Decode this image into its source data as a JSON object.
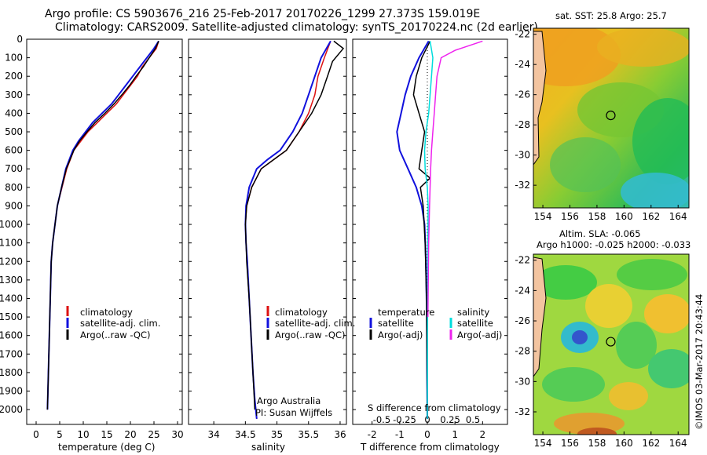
{
  "title_line1": "Argo profile: CS 5903676_216 25-Feb-2017 20170226_1299 27.373S 159.019E",
  "title_line2": "Climatology: CARS2009. Satellite-adjusted climatology: synTS_20170224.nc (2d earlier)",
  "credit": "Argo Australia",
  "pi": "PI: Susan Wijffels",
  "watermark": "©IMOS 03-Mar-2017 20:43:44",
  "colors": {
    "red": "#dd1111",
    "blue": "#1111dd",
    "black": "#000000",
    "cyan": "#00dddd",
    "magenta": "#ee22ee"
  },
  "chart_data": [
    {
      "type": "line",
      "xlabel": "temperature (deg C)",
      "ylabel": "",
      "xlim": [
        -2,
        31
      ],
      "ylim": [
        2080,
        0
      ],
      "xticks": [
        0,
        5,
        10,
        15,
        20,
        25,
        30
      ],
      "yticks": [
        0,
        100,
        200,
        300,
        400,
        500,
        600,
        700,
        800,
        900,
        1000,
        1100,
        1200,
        1300,
        1400,
        1500,
        1600,
        1700,
        1800,
        1900,
        2000
      ],
      "legend": [
        "climatology",
        "satellite-adj. clim.",
        "Argo(..raw -QC)"
      ],
      "series": [
        {
          "name": "climatology",
          "color": "red",
          "x": [
            26,
            25.5,
            24,
            22.5,
            21.5,
            20,
            18.5,
            17,
            15,
            13,
            11,
            9.5,
            8,
            6.5,
            5.5,
            4.5,
            4,
            3.5,
            3.2,
            3,
            2.8,
            2.6,
            2.4
          ],
          "y": [
            10,
            50,
            100,
            150,
            200,
            250,
            300,
            350,
            400,
            450,
            500,
            550,
            600,
            700,
            800,
            900,
            1000,
            1100,
            1200,
            1400,
            1600,
            1800,
            2000
          ]
        },
        {
          "name": "satellite-adj. clim.",
          "color": "blue",
          "x": [
            26,
            25,
            23.5,
            22,
            20.5,
            19,
            17.5,
            16,
            14,
            12,
            10.5,
            9,
            7.8,
            6.3,
            5.4,
            4.5,
            4,
            3.5,
            3.2,
            3,
            2.8,
            2.6,
            2.4
          ],
          "y": [
            10,
            50,
            100,
            150,
            200,
            250,
            300,
            350,
            400,
            450,
            500,
            550,
            600,
            700,
            800,
            900,
            1000,
            1100,
            1200,
            1400,
            1600,
            1800,
            2000
          ]
        },
        {
          "name": "Argo(..raw -QC)",
          "color": "black",
          "x": [
            26,
            25.3,
            24,
            22.7,
            21.2,
            19.8,
            18.2,
            16.5,
            14.6,
            12.5,
            10.8,
            9.2,
            8,
            6.4,
            5.4,
            4.5,
            4,
            3.5,
            3.2,
            3,
            2.8,
            2.6,
            2.4
          ],
          "y": [
            10,
            50,
            100,
            150,
            200,
            250,
            300,
            350,
            400,
            450,
            500,
            550,
            600,
            700,
            800,
            900,
            1000,
            1100,
            1200,
            1400,
            1600,
            1800,
            2000
          ]
        }
      ]
    },
    {
      "type": "line",
      "xlabel": "salinity",
      "xlim": [
        33.6,
        36.1
      ],
      "ylim": [
        2080,
        0
      ],
      "xticks": [
        34,
        34.5,
        35,
        35.5,
        36
      ],
      "legend": [
        "climatology",
        "satellite-adj. clim.",
        "Argo(..raw -QC)"
      ],
      "series": [
        {
          "name": "climatology",
          "color": "red",
          "x": [
            35.85,
            35.75,
            35.65,
            35.6,
            35.5,
            35.35,
            35.15,
            34.95,
            34.75,
            34.6,
            34.52,
            34.5,
            34.51,
            34.53,
            34.56,
            34.59,
            34.62,
            34.65,
            34.68
          ],
          "y": [
            10,
            100,
            200,
            300,
            400,
            500,
            600,
            650,
            700,
            800,
            900,
            1000,
            1100,
            1200,
            1400,
            1600,
            1800,
            1950,
            2050
          ]
        },
        {
          "name": "satellite-adj. clim.",
          "color": "blue",
          "x": [
            35.85,
            35.7,
            35.6,
            35.5,
            35.4,
            35.25,
            35.05,
            34.85,
            34.68,
            34.56,
            34.51,
            34.5,
            34.51,
            34.53,
            34.56,
            34.59,
            34.62,
            34.65,
            34.68
          ],
          "y": [
            10,
            100,
            200,
            300,
            400,
            500,
            600,
            650,
            700,
            800,
            900,
            1000,
            1100,
            1200,
            1400,
            1600,
            1800,
            1950,
            2050
          ]
        },
        {
          "name": "Argo(..raw -QC)",
          "color": "black",
          "x": [
            35.9,
            36.05,
            35.88,
            35.8,
            35.7,
            35.55,
            35.35,
            35.15,
            34.95,
            34.75,
            34.6,
            34.52,
            34.5,
            34.52,
            34.56,
            34.59,
            34.62,
            34.65
          ],
          "y": [
            10,
            50,
            120,
            200,
            300,
            400,
            500,
            600,
            650,
            700,
            800,
            900,
            1000,
            1200,
            1400,
            1600,
            1800,
            2000
          ]
        }
      ]
    },
    {
      "type": "line",
      "xlabel": "T difference from climatology",
      "x2label": "S difference from climatology",
      "xlim": [
        -2.7,
        2.9
      ],
      "ylim": [
        2080,
        0
      ],
      "xticks": [
        -2,
        -1,
        0,
        1,
        2
      ],
      "x2ticks": [
        -0.5,
        -0.25,
        0,
        0.25,
        0.5
      ],
      "legend_left_title": "temperature",
      "legend_right_title": "salinity",
      "legend": [
        "satellite",
        "Argo(-adj)",
        "satellite",
        "Argo(-adj)"
      ],
      "series": [
        {
          "name": "satellite",
          "color": "blue",
          "x": [
            0.05,
            -0.3,
            -0.6,
            -0.8,
            -0.95,
            -1.1,
            -1.0,
            -0.7,
            -0.4,
            -0.2,
            -0.1,
            -0.05,
            -0.02,
            -0.01,
            0
          ],
          "y": [
            10,
            100,
            200,
            300,
            400,
            500,
            600,
            700,
            800,
            900,
            1000,
            1200,
            1500,
            1800,
            2050
          ]
        },
        {
          "name": "Argo(-adj)",
          "color": "black",
          "x": [
            0.1,
            -0.2,
            -0.4,
            -0.5,
            -0.3,
            -0.1,
            -0.2,
            -0.3,
            0.1,
            -0.25,
            -0.15,
            -0.08,
            -0.03,
            -0.01,
            0
          ],
          "y": [
            10,
            100,
            200,
            300,
            400,
            500,
            600,
            700,
            750,
            800,
            900,
            1100,
            1400,
            1800,
            2050
          ]
        },
        {
          "name": "satellite",
          "color": "cyan",
          "x": [
            0.1,
            0.2,
            0.15,
            0.1,
            0.05,
            -0.05,
            -0.1,
            -0.08,
            0,
            0.03,
            0.02,
            0.01,
            0
          ],
          "y": [
            10,
            100,
            200,
            300,
            400,
            500,
            600,
            700,
            800,
            900,
            1100,
            1500,
            2050
          ]
        },
        {
          "name": "Argo(-adj)",
          "color": "magenta",
          "x": [
            2.0,
            1.0,
            0.5,
            0.35,
            0.3,
            0.25,
            0.2,
            0.15,
            0.12,
            0.1,
            0.08,
            0.05,
            0.02
          ],
          "y": [
            10,
            60,
            100,
            200,
            300,
            400,
            500,
            600,
            700,
            800,
            900,
            1100,
            1500
          ]
        }
      ]
    },
    {
      "type": "heatmap",
      "title": "sat. SST: 25.8 Argo: 25.7",
      "xticks": [
        154,
        156,
        158,
        160,
        162,
        164
      ],
      "yticks": [
        -22,
        -24,
        -26,
        -28,
        -30,
        -32
      ],
      "float_position": [
        159.019,
        -27.373
      ]
    },
    {
      "type": "heatmap",
      "title": "Altim. SLA: -0.065",
      "subtitle": "Argo h1000: -0.025 h2000: -0.033",
      "xticks": [
        154,
        156,
        158,
        160,
        162,
        164
      ],
      "yticks": [
        -22,
        -24,
        -26,
        -28,
        -30,
        -32
      ],
      "float_position": [
        159.019,
        -27.373
      ]
    }
  ]
}
